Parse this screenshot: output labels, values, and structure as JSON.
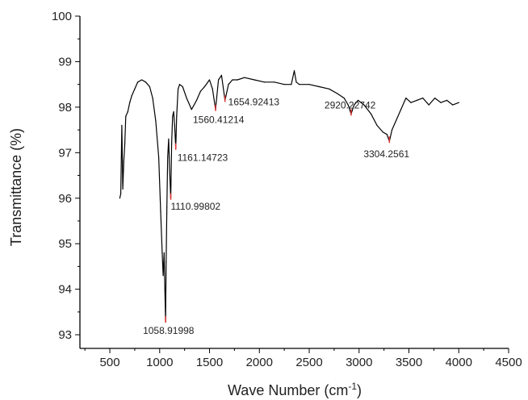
{
  "chart_data": {
    "type": "line",
    "xlabel": "Wave Number (cm",
    "xlabel_sup": "-1",
    "xlabel_close": ")",
    "ylabel": "Transmittance (%)",
    "xlim": [
      200,
      4500
    ],
    "ylim": [
      92.7,
      100
    ],
    "x_ticks": [
      "500",
      "1000",
      "1500",
      "2000",
      "2500",
      "3000",
      "3500",
      "4000",
      "4500"
    ],
    "y_ticks": [
      "93",
      "94",
      "95",
      "96",
      "97",
      "98",
      "99",
      "100"
    ],
    "grid": false,
    "line_color": "#000000",
    "marker_color": "#e03030",
    "series": [
      {
        "x": [
          600,
          610,
          620,
          630,
          640,
          650,
          660,
          680,
          700,
          720,
          750,
          780,
          820,
          860,
          900,
          930,
          960,
          990,
          1010,
          1025,
          1035,
          1045,
          1052,
          1058.92,
          1065,
          1072,
          1080,
          1090,
          1100,
          1110.99802,
          1120,
          1130,
          1140,
          1150,
          1161.14723,
          1170,
          1185,
          1200,
          1230,
          1270,
          1320,
          1370,
          1410,
          1450,
          1500,
          1530,
          1560.41214,
          1590,
          1620,
          1654.92413,
          1690,
          1730,
          1780,
          1850,
          1950,
          2050,
          2150,
          2250,
          2320,
          2350,
          2370,
          2400,
          2500,
          2600,
          2700,
          2780,
          2850,
          2890,
          2920.22742,
          2950,
          2990,
          3050,
          3120,
          3180,
          3240,
          3280,
          3304.2561,
          3330,
          3370,
          3420,
          3470,
          3520,
          3580,
          3640,
          3700,
          3760,
          3820,
          3880,
          3940,
          4000
        ],
        "y": [
          96.0,
          96.1,
          97.6,
          96.2,
          96.8,
          97.2,
          97.8,
          97.9,
          98.1,
          98.25,
          98.4,
          98.55,
          98.6,
          98.55,
          98.45,
          98.2,
          97.7,
          96.9,
          95.7,
          94.8,
          94.3,
          94.8,
          94.0,
          93.3,
          94.6,
          95.8,
          96.9,
          97.3,
          96.6,
          96.0,
          97.2,
          97.8,
          97.9,
          97.6,
          97.1,
          97.8,
          98.4,
          98.5,
          98.45,
          98.2,
          97.95,
          98.15,
          98.35,
          98.45,
          98.6,
          98.4,
          97.95,
          98.6,
          98.7,
          98.15,
          98.5,
          98.6,
          98.6,
          98.65,
          98.6,
          98.55,
          98.55,
          98.5,
          98.5,
          98.8,
          98.55,
          98.5,
          98.5,
          98.45,
          98.4,
          98.3,
          98.2,
          98.05,
          97.85,
          98.05,
          98.15,
          98.05,
          97.85,
          97.6,
          97.45,
          97.4,
          97.25,
          97.5,
          97.7,
          97.95,
          98.2,
          98.1,
          98.15,
          98.2,
          98.05,
          98.2,
          98.1,
          98.15,
          98.05,
          98.1
        ]
      }
    ],
    "peaks": [
      {
        "x": 1058.91998,
        "y": 93.3,
        "label": "1058.91998"
      },
      {
        "x": 1110.99802,
        "y": 96.0,
        "label": "1110.99802"
      },
      {
        "x": 1161.14723,
        "y": 97.1,
        "label": "1161.14723"
      },
      {
        "x": 1560.41214,
        "y": 97.95,
        "label": "1560.41214"
      },
      {
        "x": 1654.92413,
        "y": 98.15,
        "label": "1654.92413"
      },
      {
        "x": 2920.22742,
        "y": 97.85,
        "label": "2920.22742"
      },
      {
        "x": 3304.2561,
        "y": 97.25,
        "label": "3304.2561"
      }
    ]
  }
}
